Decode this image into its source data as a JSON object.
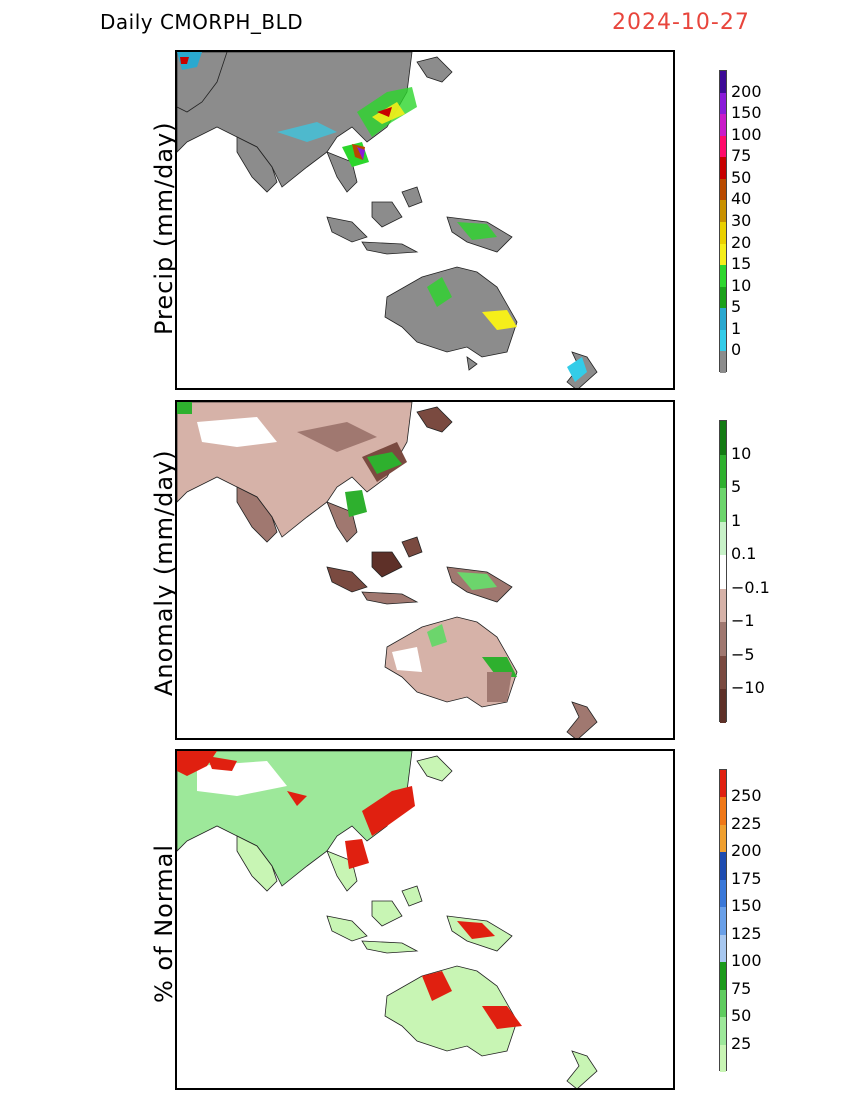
{
  "header": {
    "product": "Daily  CMORPH_BLD",
    "date": "2024-10-27"
  },
  "panels": [
    {
      "id": "precip",
      "ylabel": "Precip (mm/day)",
      "colorbar": {
        "colors": [
          "#8c8c8c",
          "#33cce8",
          "#2aa8cf",
          "#1aa11a",
          "#2cd62c",
          "#f5ee1a",
          "#ead000",
          "#c99100",
          "#b84a00",
          "#c70000",
          "#ff0a6a",
          "#c91ac9",
          "#8a1ad9",
          "#3c0a96"
        ],
        "labels": [
          "0",
          "1",
          "5",
          "10",
          "15",
          "20",
          "30",
          "40",
          "50",
          "75",
          "100",
          "150",
          "200"
        ]
      }
    },
    {
      "id": "anomaly",
      "ylabel": "Anomaly (mm/day)",
      "colorbar": {
        "colors": [
          "#5e3028",
          "#7a4a40",
          "#a07870",
          "#d6b2a8",
          "#ffffff",
          "#c8f2c8",
          "#6cd56c",
          "#2eb02e",
          "#137a13"
        ],
        "labels": [
          "−10",
          "−5",
          "−1",
          "−0.1",
          "0.1",
          "1",
          "5",
          "10"
        ]
      }
    },
    {
      "id": "percent",
      "ylabel": "% of Normal",
      "colorbar": {
        "colors": [
          "#c8f5b4",
          "#9de89a",
          "#5fcc5f",
          "#1a9a1a",
          "#a8c8f0",
          "#6aa0e8",
          "#3a78d8",
          "#1e4cb0",
          "#f0a030",
          "#f07818",
          "#e02010"
        ],
        "labels": [
          "25",
          "50",
          "75",
          "100",
          "125",
          "150",
          "175",
          "200",
          "225",
          "250"
        ]
      }
    }
  ]
}
